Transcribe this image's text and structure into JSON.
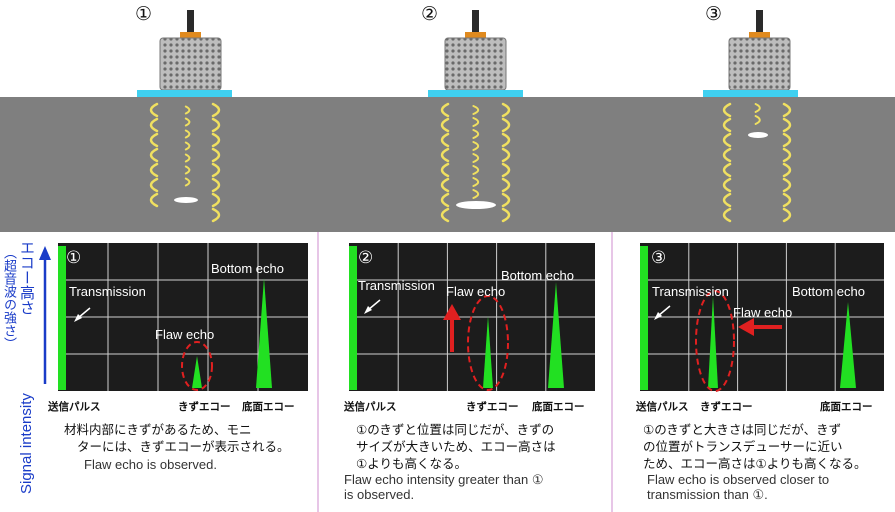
{
  "panels": [
    {
      "number": "①",
      "scope_number": "①",
      "labels": {
        "transmission": "Transmission",
        "flaw": "Flaw echo",
        "bottom": "Bottom echo"
      },
      "ticks": {
        "left": "送信パルス",
        "mid": "きずエコー",
        "right": "底面エコー"
      },
      "jp_lines": [
        "材料内部にきずがあるため、モニ",
        "ターには、きずエコーが表示される。"
      ],
      "en_lines": [
        "Flaw echo is observed."
      ]
    },
    {
      "number": "②",
      "scope_number": "②",
      "labels": {
        "transmission": "Transmission",
        "flaw": "Flaw echo",
        "bottom": "Bottom echo"
      },
      "ticks": {
        "left": "送信パルス",
        "mid": "きずエコー",
        "right": "底面エコー"
      },
      "jp_lines": [
        "①のきずと位置は同じだが、きずの",
        "サイズが大きいため、エコー高さは",
        "①よりも高くなる。"
      ],
      "en_lines": [
        "Flaw echo intensity greater than ①",
        "is observed."
      ]
    },
    {
      "number": "③",
      "scope_number": "③",
      "labels": {
        "transmission": "Transmission",
        "flaw": "Flaw echo",
        "bottom": "Bottom echo"
      },
      "ticks": {
        "left": "送信パルス",
        "mid": "きずエコー",
        "right": "底面エコー"
      },
      "jp_lines": [
        "①のきずと大きさは同じだが、きず",
        "の位置がトランスデューサーに近い",
        "ため、エコー高さは①よりも高くなる。"
      ],
      "en_lines": [
        "Flaw echo is observed closer to",
        "transmission than ①."
      ]
    }
  ],
  "y_axis": {
    "jp_main": "エコー高さ",
    "jp_sub": "（超音波の強さ）",
    "en": "Signal intensity"
  },
  "colors": {
    "material": "#7f7f7f",
    "scope_bg": "#1c1c1c",
    "grid": "#cfcfcf",
    "echo": "#22e022",
    "axis_text": "#1a3cc8",
    "highlight": "#e02020",
    "couplant": "#3fd0f0",
    "wave": "#f0e060",
    "divider": "#e7c6e7"
  }
}
